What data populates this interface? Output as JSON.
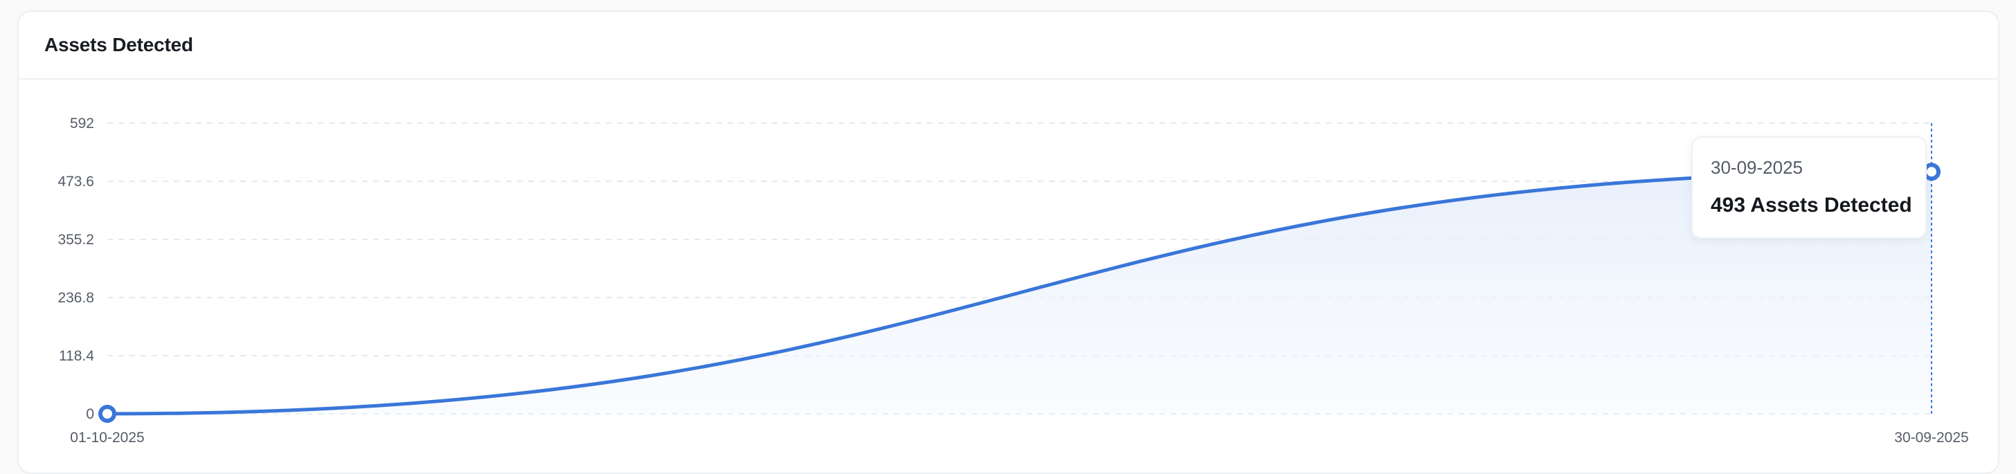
{
  "card": {
    "title": "Assets Detected"
  },
  "chart_data": {
    "type": "area",
    "title": "Assets Detected",
    "xlabel": "",
    "ylabel": "",
    "x": [
      "01-10-2025",
      "30-09-2025"
    ],
    "series": [
      {
        "name": "Assets Detected",
        "values": [
          0,
          493
        ]
      }
    ],
    "y_ticks": [
      "0",
      "118.4",
      "236.8",
      "355.2",
      "473.6",
      "592"
    ],
    "x_ticks": [
      "01-10-2025",
      "30-09-2025"
    ],
    "ylim": [
      0,
      592
    ],
    "grid": true,
    "curve": "smooth",
    "line_color": "#3a76d9",
    "fill_color": "#eaf1fc"
  },
  "tooltip": {
    "date": "30-09-2025",
    "value_text": "493 Assets Detected"
  }
}
